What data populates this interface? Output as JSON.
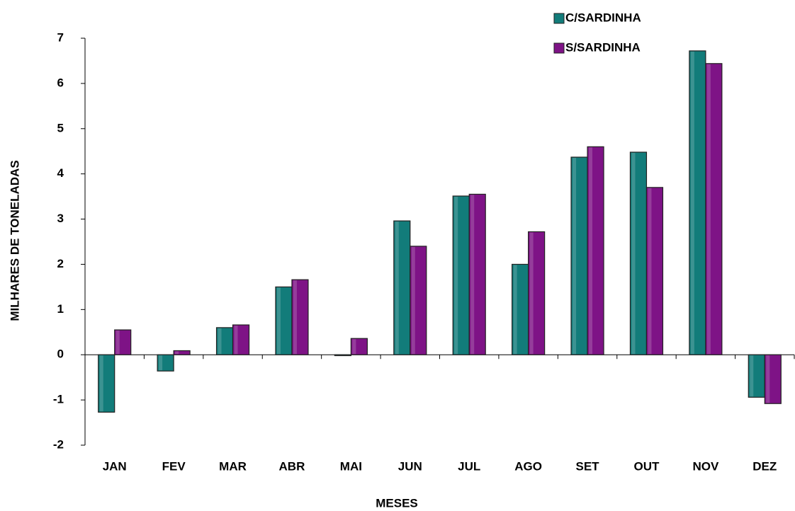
{
  "chart_data": {
    "type": "bar",
    "x_label": "MESES",
    "y_label": "MILHARES DE TONELADAS",
    "categories": [
      "JAN",
      "FEV",
      "MAR",
      "ABR",
      "MAI",
      "JUN",
      "JUL",
      "AGO",
      "SET",
      "OUT",
      "NOV",
      "DEZ"
    ],
    "series": [
      {
        "name": "C/SARDINHA",
        "color": "#127c7a",
        "values": [
          -1.27,
          -0.36,
          0.6,
          1.5,
          -0.02,
          2.96,
          3.51,
          2.0,
          4.37,
          4.48,
          6.72,
          -0.94
        ]
      },
      {
        "name": "S/SARDINHA",
        "color": "#7e1386",
        "values": [
          0.55,
          0.09,
          0.66,
          1.66,
          0.36,
          2.4,
          3.55,
          2.72,
          4.6,
          3.7,
          6.44,
          -1.08
        ]
      }
    ],
    "ylim": [
      -2,
      7
    ],
    "yticks": [
      -2,
      -1,
      0,
      1,
      2,
      3,
      4,
      5,
      6,
      7
    ],
    "grid": false,
    "legend": "top-right"
  }
}
